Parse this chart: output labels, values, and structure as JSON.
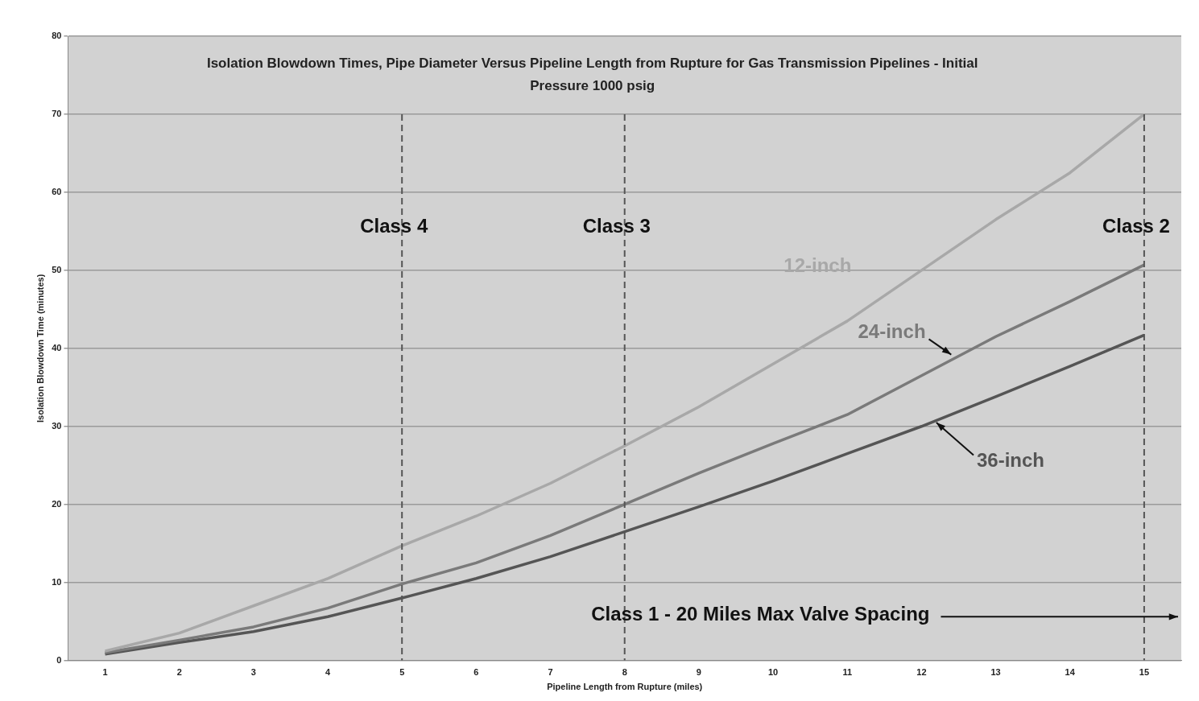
{
  "chart_data": {
    "type": "line",
    "title": "Isolation Blowdown Times, Pipe Diameter Versus Pipeline Length from Rupture for Gas Transmission Pipelines - Initial Pressure 1000 psig",
    "xlabel": "Pipeline Length from Rupture (miles)",
    "ylabel": "Isolation Blowdown Time (minutes)",
    "categories": [
      "1",
      "2",
      "3",
      "4",
      "5",
      "6",
      "7",
      "8",
      "9",
      "10",
      "11",
      "12",
      "13",
      "14",
      "15"
    ],
    "series": [
      {
        "name": "12-inch",
        "color": "#a8a8a8",
        "values": [
          1.2,
          3.5,
          7,
          10.5,
          14.7,
          18.5,
          22.7,
          27.5,
          32.5,
          38,
          43.5,
          50,
          56.5,
          62.5,
          70
        ]
      },
      {
        "name": "24-inch",
        "color": "#7a7a7a",
        "values": [
          1,
          2.6,
          4.3,
          6.7,
          9.8,
          12.5,
          16,
          20,
          24,
          27.8,
          31.5,
          36.5,
          41.5,
          46,
          50.7
        ]
      },
      {
        "name": "36-inch",
        "color": "#555555",
        "values": [
          0.8,
          2.3,
          3.7,
          5.6,
          8,
          10.5,
          13.3,
          16.5,
          19.7,
          23,
          26.5,
          30,
          33.8,
          37.7,
          41.7
        ]
      }
    ],
    "ylim": [
      0,
      80
    ],
    "yticks": [
      0,
      10,
      20,
      30,
      40,
      50,
      60,
      70,
      80
    ],
    "grid": "y",
    "legend": false,
    "marker": "none",
    "line_style": "solid",
    "ref_lines": [
      {
        "axis": "x",
        "value": "5",
        "label": "Class 4",
        "color": "#555555",
        "line_style": "dashed"
      },
      {
        "axis": "x",
        "value": "8",
        "label": "Class 3",
        "color": "#555555",
        "line_style": "dashed"
      },
      {
        "axis": "x",
        "value": "15",
        "label": "Class 2",
        "color": "#555555",
        "line_style": "dashed"
      }
    ],
    "annotations": [
      "Class 1 - 20 Miles Max Valve Spacing"
    ]
  }
}
